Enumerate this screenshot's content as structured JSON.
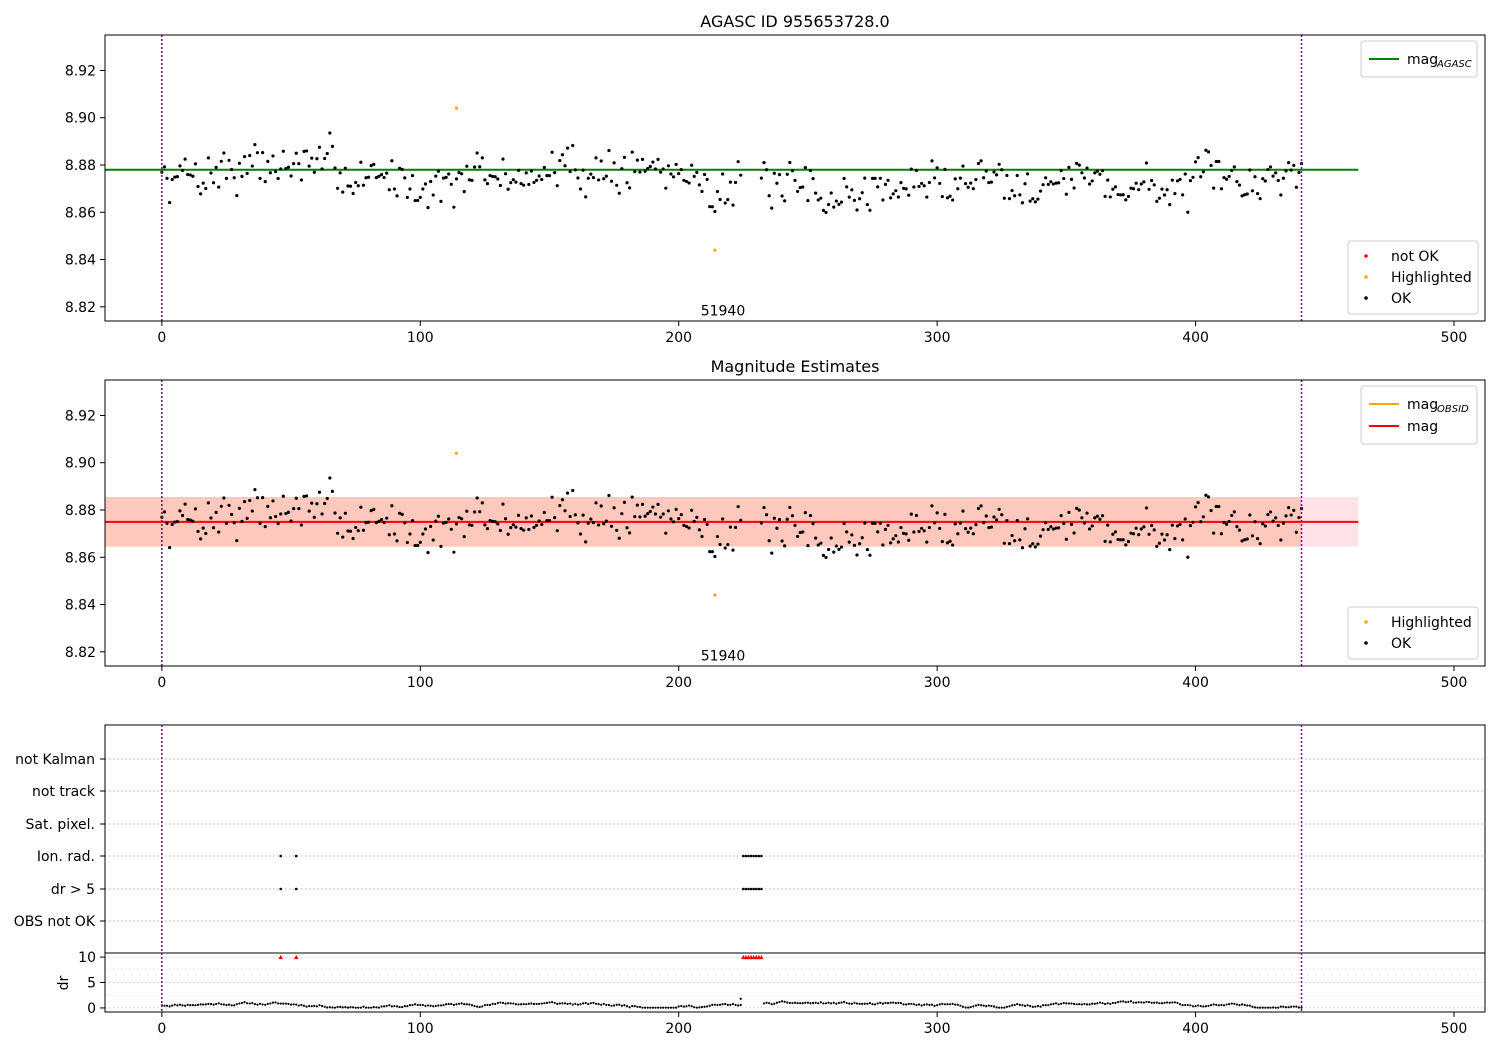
{
  "figure": {
    "title1": "AGASC ID 955653728.0",
    "title2": "Magnitude Estimates"
  },
  "chart_data": [
    {
      "type": "scatter",
      "title": "AGASC ID 955653728.0",
      "xlim": [
        -22,
        512
      ],
      "ylim": [
        8.814,
        8.935
      ],
      "xticks": [
        0,
        100,
        200,
        300,
        400,
        500
      ],
      "yticks": [
        8.82,
        8.84,
        8.86,
        8.88,
        8.9,
        8.92
      ],
      "reference_line": {
        "name": "mag_AGASC",
        "label_main": "mag",
        "label_sub": "AGASC",
        "value": 8.878,
        "x_range": [
          -22,
          463
        ],
        "color": "#008000"
      },
      "vlines": [
        0,
        441
      ],
      "vline_color": "#800080",
      "annotation": {
        "text": "51940",
        "x": 221,
        "y": 8.818
      },
      "series": [
        {
          "name": "not OK",
          "color": "#ff0000",
          "points": []
        },
        {
          "name": "Highlighted",
          "color": "#ffa500",
          "points": [
            [
              114,
              8.904
            ],
            [
              214,
              8.844
            ]
          ]
        },
        {
          "name": "OK",
          "color": "#000000",
          "generator": {
            "n": 441,
            "x_start": 0,
            "x_end": 441,
            "mean": 8.874,
            "amplitude": 0.012,
            "gap": [
              224,
              232
            ],
            "seed": 7
          }
        }
      ],
      "legend_top": [
        "mag_AGASC"
      ],
      "legend_bottom": [
        "not OK",
        "Highlighted",
        "OK"
      ]
    },
    {
      "type": "scatter",
      "title": "Magnitude Estimates",
      "xlim": [
        -22,
        512
      ],
      "ylim": [
        8.814,
        8.935
      ],
      "xticks": [
        0,
        100,
        200,
        300,
        400,
        500
      ],
      "yticks": [
        8.82,
        8.84,
        8.86,
        8.88,
        8.9,
        8.92
      ],
      "reference_lines": [
        {
          "name": "mag_OBSID",
          "label_main": "mag",
          "label_sub": "OBSID",
          "value": 8.875,
          "color": "#ffa500"
        },
        {
          "name": "mag",
          "label_main": "mag",
          "label_sub": "",
          "value": 8.875,
          "x_range": [
            -22,
            463
          ],
          "color": "#ff0000"
        }
      ],
      "bands": [
        {
          "y_range": [
            8.8645,
            8.8855
          ],
          "x_range": [
            -22,
            463
          ],
          "color": "#ffc0cb",
          "opacity": 0.45
        },
        {
          "y_range": [
            8.8645,
            8.8855
          ],
          "x_range": [
            -22,
            441
          ],
          "color": "#ffa07a",
          "opacity": 0.4
        }
      ],
      "vlines": [
        0,
        441
      ],
      "annotation": {
        "text": "51940",
        "x": 221,
        "y": 8.818
      },
      "series": [
        {
          "name": "Highlighted",
          "color": "#ffa500",
          "points": [
            [
              114,
              8.904
            ],
            [
              214,
              8.844
            ]
          ]
        },
        {
          "name": "OK",
          "color": "#000000",
          "same_as_panel": 0
        }
      ],
      "legend_top": [
        "mag_OBSID",
        "mag"
      ],
      "legend_bottom": [
        "Highlighted",
        "OK"
      ]
    },
    {
      "type": "scatter",
      "title": "",
      "flag_rows": [
        "not Kalman",
        "not track",
        "Sat. pixel.",
        "Ion. rad.",
        "dr > 5",
        "OBS not OK"
      ],
      "flag_points": {
        "Ion. rad.": [
          46,
          52,
          225,
          226,
          227,
          228,
          229,
          230,
          231,
          232
        ],
        "dr > 5": [
          46,
          52,
          225,
          226,
          227,
          228,
          229,
          230,
          231,
          232
        ]
      },
      "dr": {
        "ylabel": "dr",
        "yticks": [
          0,
          5,
          10
        ],
        "ylim": [
          -0.8,
          10.8
        ],
        "clipped_points": [
          46,
          52,
          225,
          226,
          227,
          228,
          229,
          230,
          231,
          232
        ],
        "clip_color": "#ff0000"
      },
      "xlim": [
        -22,
        512
      ],
      "xticks": [
        0,
        100,
        200,
        300,
        400,
        500
      ],
      "vlines": [
        0,
        441
      ]
    }
  ]
}
